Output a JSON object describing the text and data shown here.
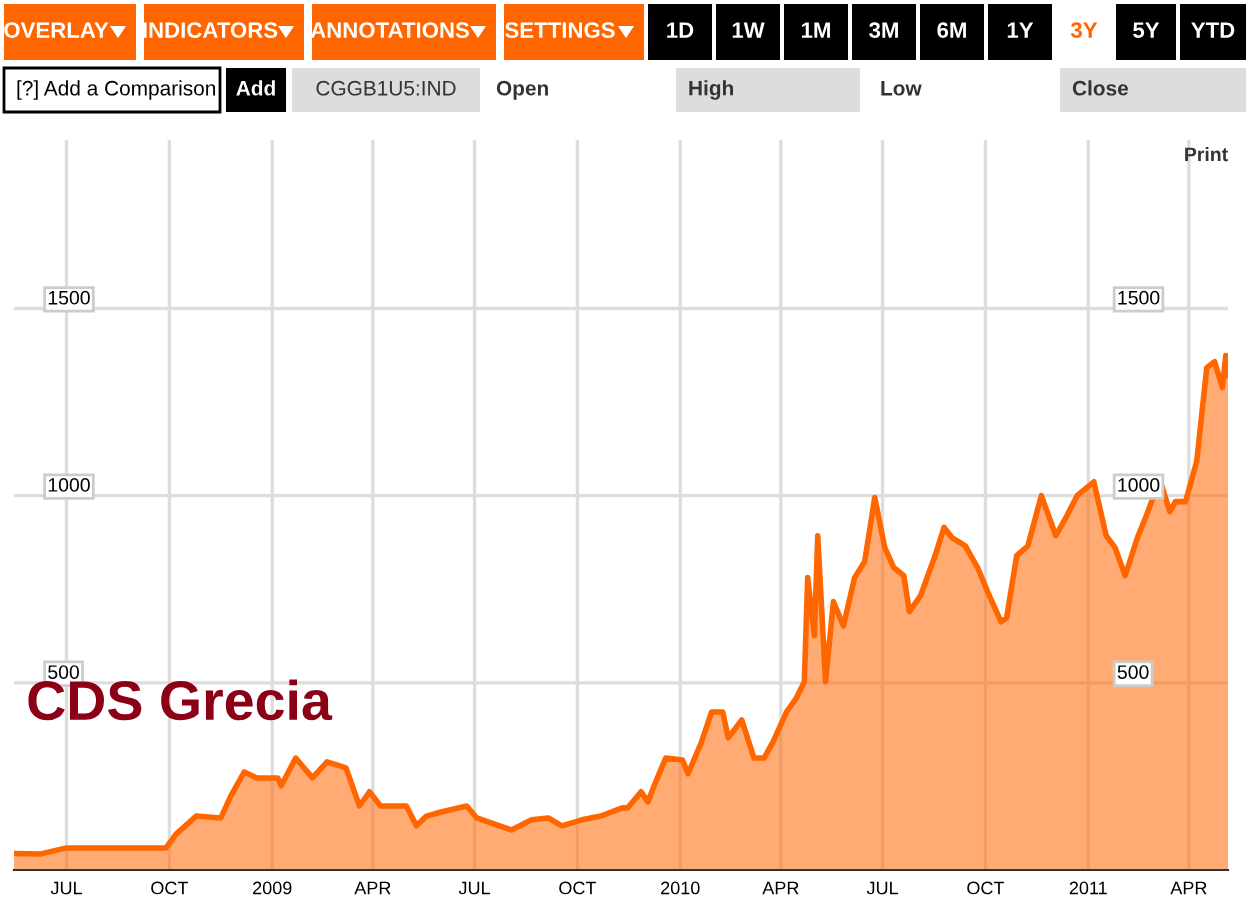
{
  "chart_data": {
    "type": "area",
    "title": "CDS Grecia",
    "annotations": [
      "OVERLAY",
      "INDICATORS",
      "ANNOTATIONS",
      "SETTINGS",
      "1D",
      "1W",
      "1M",
      "3M",
      "6M",
      "1Y",
      "3Y",
      "5Y",
      "YTD",
      "[?] Add a Comparison",
      "Add",
      "CGGB1U5:IND",
      "Open",
      "High",
      "Low",
      "Close",
      "Print"
    ],
    "x": [
      "2008-05-15",
      "2008-06-08",
      "2008-07-01",
      "2008-09-28",
      "2008-10-07",
      "2008-10-25",
      "2008-11-16",
      "2008-11-25",
      "2008-12-07",
      "2008-12-18",
      "2009-01-06",
      "2009-01-09",
      "2009-01-22",
      "2009-02-06",
      "2009-02-19",
      "2009-03-08",
      "2009-03-20",
      "2009-03-29",
      "2009-04-08",
      "2009-05-01",
      "2009-05-10",
      "2009-05-19",
      "2009-06-01",
      "2009-06-24",
      "2009-07-03",
      "2009-08-03",
      "2009-08-21",
      "2009-09-05",
      "2009-09-17",
      "2009-10-05",
      "2009-10-22",
      "2009-11-10",
      "2009-11-15",
      "2009-11-27",
      "2009-12-03",
      "2009-12-10",
      "2009-12-19",
      "2010-01-03",
      "2010-01-08",
      "2010-01-20",
      "2010-01-29",
      "2010-02-08",
      "2010-02-13",
      "2010-02-25",
      "2010-03-08",
      "2010-03-17",
      "2010-03-25",
      "2010-04-06",
      "2010-04-15",
      "2010-04-22",
      "2010-04-25",
      "2010-05-01",
      "2010-05-04",
      "2010-05-11",
      "2010-05-18",
      "2010-05-27",
      "2010-06-06",
      "2010-06-15",
      "2010-06-24",
      "2010-07-03",
      "2010-07-11",
      "2010-07-20",
      "2010-07-25",
      "2010-08-04",
      "2010-08-17",
      "2010-08-25",
      "2010-09-01",
      "2010-09-13",
      "2010-09-24",
      "2010-10-03",
      "2010-10-15",
      "2010-10-20",
      "2010-10-29",
      "2010-11-08",
      "2010-11-20",
      "2010-12-03",
      "2010-12-13",
      "2010-12-22",
      "2011-01-06",
      "2011-01-17",
      "2011-01-25",
      "2011-02-03",
      "2011-02-14",
      "2011-02-22",
      "2011-03-06",
      "2011-03-15",
      "2011-03-20",
      "2011-03-29",
      "2011-04-08",
      "2011-04-17",
      "2011-04-24",
      "2011-05-01",
      "2011-05-04",
      "2011-05-06"
    ],
    "series": [
      {
        "color": "#ff6600",
        "values": [
          44,
          43,
          59,
          59,
          96,
          144,
          139,
          198,
          262,
          246,
          246,
          225,
          299,
          246,
          289,
          273,
          171,
          209,
          171,
          171,
          118,
          144,
          155,
          171,
          139,
          107,
          134,
          139,
          118,
          134,
          144,
          166,
          166,
          209,
          182,
          235,
          299,
          294,
          257,
          342,
          422,
          422,
          353,
          401,
          299,
          299,
          342,
          422,
          460,
          503,
          781,
          626,
          893,
          503,
          717,
          652,
          781,
          824,
          995,
          861,
          808,
          786,
          690,
          733,
          840,
          915,
          888,
          866,
          808,
          743,
          663,
          674,
          840,
          866,
          1000,
          893,
          947,
          1000,
          1037,
          893,
          861,
          786,
          888,
          947,
          1043,
          957,
          984,
          984,
          1091,
          1342,
          1358,
          1289,
          1374,
          1321
        ]
      }
    ],
    "xlim": [
      "2008-05-15",
      "2011-05-06"
    ],
    "xticks": [
      {
        "value": "2008-07-01",
        "label": "JUL"
      },
      {
        "value": "2008-10-01",
        "label": "OCT"
      },
      {
        "value": "2009-01-01",
        "label": "2009"
      },
      {
        "value": "2009-04-01",
        "label": "APR"
      },
      {
        "value": "2009-07-01",
        "label": "JUL"
      },
      {
        "value": "2009-10-01",
        "label": "OCT"
      },
      {
        "value": "2010-01-01",
        "label": "2010"
      },
      {
        "value": "2010-04-01",
        "label": "APR"
      },
      {
        "value": "2010-07-01",
        "label": "JUL"
      },
      {
        "value": "2010-10-01",
        "label": "OCT"
      },
      {
        "value": "2011-01-01",
        "label": "2011"
      },
      {
        "value": "2011-04-01",
        "label": "APR"
      }
    ],
    "ylim": [
      0,
      1950
    ],
    "yticks": [
      500,
      1000,
      1500
    ],
    "y2lim": [
      0,
      1950
    ],
    "y2ticks": [
      500,
      1000,
      1500
    ],
    "grid": true
  }
}
